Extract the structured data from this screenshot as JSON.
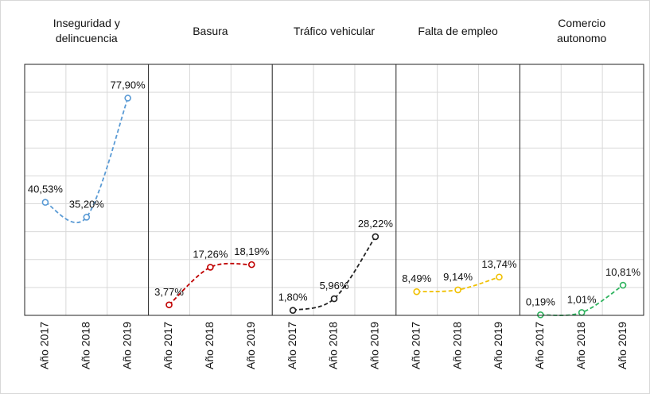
{
  "chart_data": [
    {
      "type": "line",
      "title": "Inseguridad y delincuencia",
      "categories": [
        "Año 2017",
        "Año 2018",
        "Año 2019"
      ],
      "values": [
        40.53,
        35.2,
        77.9
      ],
      "value_labels": [
        "40,53%",
        "35,20%",
        "77,90%"
      ],
      "color": "#5b9bd5",
      "ylim": [
        0,
        90
      ],
      "yticks": [
        0,
        10,
        20,
        30,
        40,
        50,
        60,
        70,
        80,
        90
      ],
      "grid": true
    },
    {
      "type": "line",
      "title": "Basura",
      "categories": [
        "Año 2017",
        "Año 2018",
        "Año 2019"
      ],
      "values": [
        3.77,
        17.26,
        18.19
      ],
      "value_labels": [
        "3,77%",
        "17,26%",
        "18,19%"
      ],
      "color": "#c00000",
      "ylim": [
        0,
        90
      ],
      "yticks": [
        0,
        10,
        20,
        30,
        40,
        50,
        60,
        70,
        80,
        90
      ],
      "grid": true
    },
    {
      "type": "line",
      "title": "Tráfico vehicular",
      "categories": [
        "Año 2017",
        "Año 2018",
        "Año 2019"
      ],
      "values": [
        1.8,
        5.96,
        28.22
      ],
      "value_labels": [
        "1,80%",
        "5,96%",
        "28,22%"
      ],
      "color": "#222222",
      "ylim": [
        0,
        90
      ],
      "yticks": [
        0,
        10,
        20,
        30,
        40,
        50,
        60,
        70,
        80,
        90
      ],
      "grid": true
    },
    {
      "type": "line",
      "title": "Falta de empleo",
      "categories": [
        "Año 2017",
        "Año 2018",
        "Año 2019"
      ],
      "values": [
        8.49,
        9.14,
        13.74
      ],
      "value_labels": [
        "8,49%",
        "9,14%",
        "13,74%"
      ],
      "color": "#f0c000",
      "ylim": [
        0,
        90
      ],
      "yticks": [
        0,
        10,
        20,
        30,
        40,
        50,
        60,
        70,
        80,
        90
      ],
      "grid": true
    },
    {
      "type": "line",
      "title": "Comercio autonomo",
      "categories": [
        "Año 2017",
        "Año 2018",
        "Año 2019"
      ],
      "values": [
        0.19,
        1.01,
        10.81
      ],
      "value_labels": [
        "0,19%",
        "1,01%",
        "10,81%"
      ],
      "color": "#2db35d",
      "ylim": [
        0,
        90
      ],
      "yticks": [
        0,
        10,
        20,
        30,
        40,
        50,
        60,
        70,
        80,
        90
      ],
      "grid": true
    }
  ]
}
